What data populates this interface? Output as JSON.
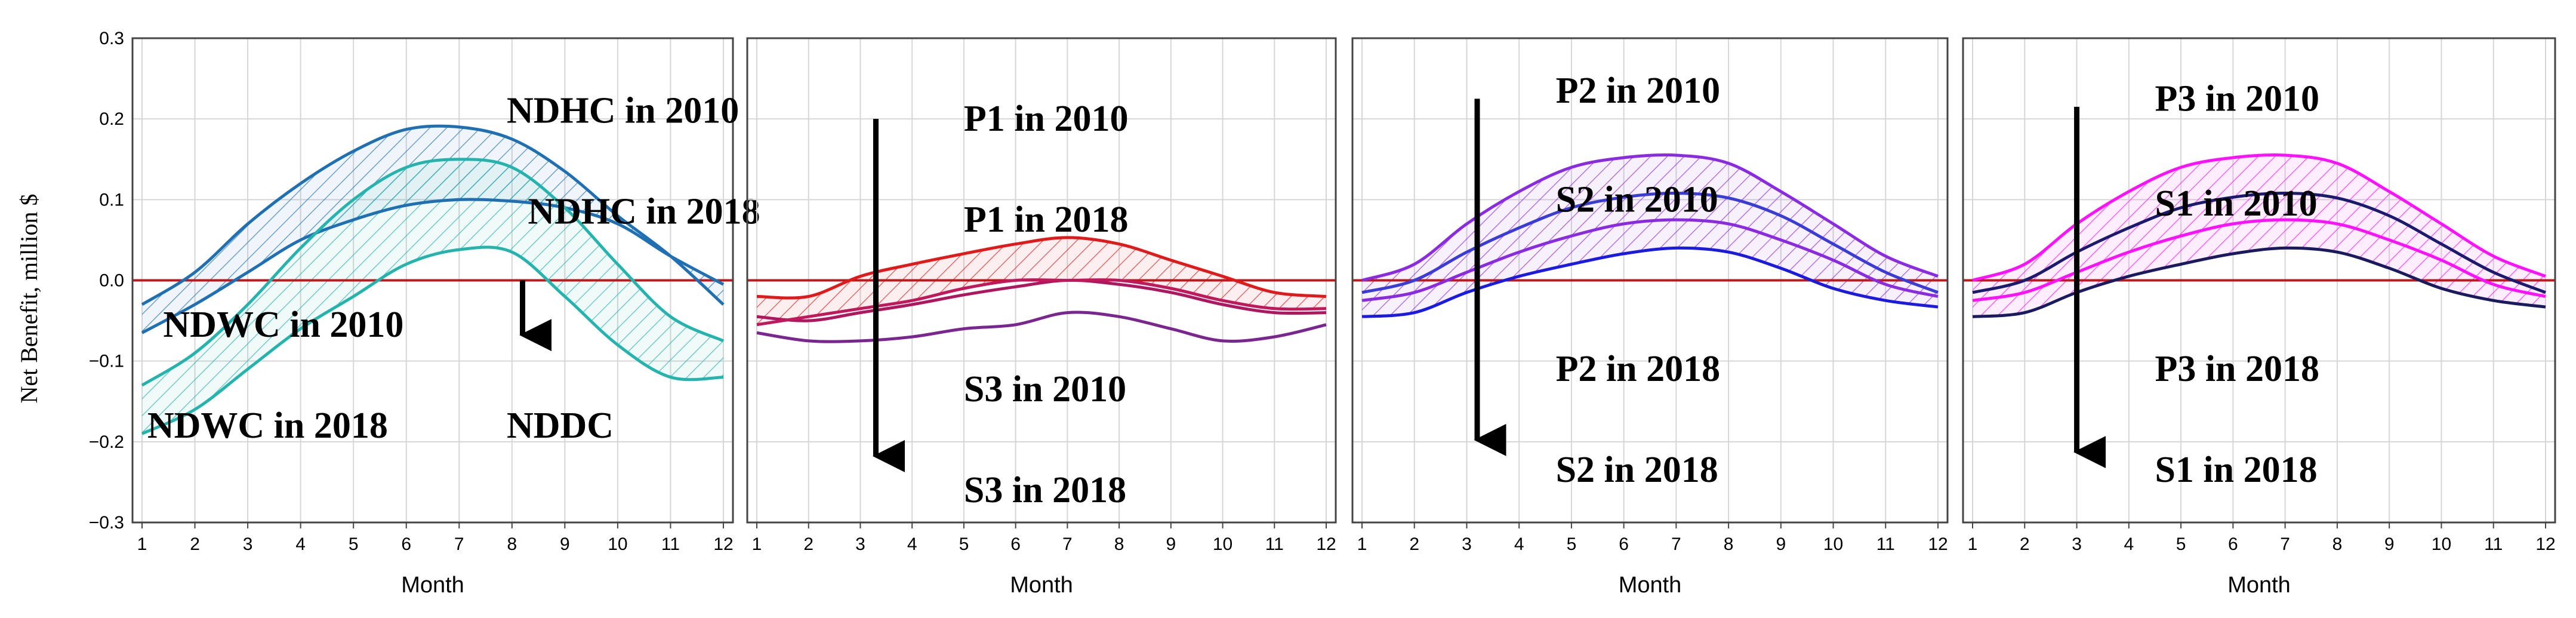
{
  "figure": {
    "ylabel": "Net Benefit, million $",
    "xlabel": "Month"
  },
  "chart_data": [
    {
      "type": "line",
      "panel": "NDHC / NDWC",
      "title": "",
      "xlabel": "Month",
      "ylabel": "Net Benefit, million $",
      "x": [
        1,
        2,
        3,
        4,
        5,
        6,
        7,
        8,
        9,
        10,
        11,
        12
      ],
      "xlim": [
        1,
        12
      ],
      "ylim": [
        -0.3,
        0.3
      ],
      "yticks": [
        -0.3,
        -0.2,
        -0.1,
        0.0,
        0.1,
        0.2,
        0.3
      ],
      "ytick_labels": [
        "−0.3",
        "−0.2",
        "−0.1",
        "0.0",
        "0.1",
        "0.2",
        "0.3"
      ],
      "grid": true,
      "zero_line": true,
      "series": [
        {
          "name": "NDHC in 2010",
          "color": "#1f6fb3",
          "values": [
            -0.03,
            0.01,
            0.07,
            0.12,
            0.16,
            0.187,
            0.19,
            0.175,
            0.135,
            0.08,
            0.03,
            -0.03
          ]
        },
        {
          "name": "NDHC in 2018",
          "color": "#1f6fb3",
          "values": [
            -0.065,
            -0.03,
            0.01,
            0.05,
            0.075,
            0.093,
            0.1,
            0.098,
            0.09,
            0.07,
            0.03,
            -0.005
          ]
        },
        {
          "name": "NDWC in 2010",
          "color": "#25b3ad",
          "values": [
            -0.13,
            -0.09,
            -0.03,
            0.04,
            0.1,
            0.14,
            0.15,
            0.14,
            0.09,
            0.02,
            -0.045,
            -0.075
          ]
        },
        {
          "name": "NDWC in 2018",
          "color": "#25b3ad",
          "values": [
            -0.19,
            -0.16,
            -0.11,
            -0.06,
            -0.02,
            0.02,
            0.038,
            0.035,
            -0.02,
            -0.08,
            -0.12,
            -0.12
          ]
        }
      ],
      "bands": [
        {
          "upper": "NDHC in 2010",
          "lower": "NDHC in 2018",
          "color": "#1f6fb3"
        },
        {
          "upper": "NDWC in 2010",
          "lower": "NDWC in 2018",
          "color": "#25b3ad"
        }
      ],
      "arrow": {
        "x": 8.2,
        "from": 0.0,
        "to": -0.09
      },
      "annotations": [
        {
          "text": "NDHC in 2010",
          "x": 7.9,
          "y": 0.21
        },
        {
          "text": "NDHC in 2018",
          "x": 8.3,
          "y": 0.085
        },
        {
          "text": "NDWC in 2010",
          "x": 1.4,
          "y": -0.055
        },
        {
          "text": "NDWC in 2018",
          "x": 1.1,
          "y": -0.18
        },
        {
          "text": "NDDC",
          "x": 7.9,
          "y": -0.18
        }
      ]
    },
    {
      "type": "line",
      "panel": "P1 / S3",
      "title": "",
      "xlabel": "Month",
      "x": [
        1,
        2,
        3,
        4,
        5,
        6,
        7,
        8,
        9,
        10,
        11,
        12
      ],
      "xlim": [
        1,
        12
      ],
      "ylim": [
        -0.3,
        0.3
      ],
      "grid": true,
      "zero_line": true,
      "series": [
        {
          "name": "P1 in 2010",
          "color": "#e0191b",
          "values": [
            -0.02,
            -0.02,
            0.005,
            0.02,
            0.033,
            0.045,
            0.053,
            0.045,
            0.025,
            0.005,
            -0.015,
            -0.02
          ]
        },
        {
          "name": "P1 in 2018",
          "color": "#b01560",
          "values": [
            -0.045,
            -0.05,
            -0.04,
            -0.03,
            -0.018,
            -0.008,
            0.0,
            -0.005,
            -0.015,
            -0.03,
            -0.04,
            -0.04
          ]
        },
        {
          "name": "S3 in 2010",
          "color": "#c0185a",
          "values": [
            -0.055,
            -0.045,
            -0.035,
            -0.025,
            -0.01,
            0.0,
            0.0,
            0.0,
            -0.01,
            -0.025,
            -0.035,
            -0.035
          ]
        },
        {
          "name": "S3 in 2018",
          "color": "#7a2590",
          "values": [
            -0.065,
            -0.075,
            -0.075,
            -0.07,
            -0.06,
            -0.055,
            -0.04,
            -0.045,
            -0.06,
            -0.075,
            -0.07,
            -0.055
          ]
        }
      ],
      "bands": [
        {
          "upper": "P1 in 2010",
          "lower": "S3 in 2010",
          "color": "#e0191b"
        }
      ],
      "arrow": {
        "x": 3.3,
        "from": 0.2,
        "to": -0.24
      },
      "annotations": [
        {
          "text": "P1 in 2010",
          "x": 5.0,
          "y": 0.2
        },
        {
          "text": "P1 in 2018",
          "x": 5.0,
          "y": 0.075
        },
        {
          "text": "S3 in 2010",
          "x": 5.0,
          "y": -0.135
        },
        {
          "text": "S3 in 2018",
          "x": 5.0,
          "y": -0.26
        }
      ]
    },
    {
      "type": "line",
      "panel": "P2 / S2",
      "title": "",
      "xlabel": "Month",
      "x": [
        1,
        2,
        3,
        4,
        5,
        6,
        7,
        8,
        9,
        10,
        11,
        12
      ],
      "xlim": [
        1,
        12
      ],
      "ylim": [
        -0.3,
        0.3
      ],
      "grid": true,
      "zero_line": true,
      "series": [
        {
          "name": "P2 in 2010",
          "color": "#8a2be2",
          "values": [
            0.0,
            0.02,
            0.07,
            0.11,
            0.14,
            0.152,
            0.155,
            0.145,
            0.11,
            0.07,
            0.03,
            0.005
          ]
        },
        {
          "name": "S2 in 2010",
          "color": "#3b3bd6",
          "values": [
            -0.015,
            0.0,
            0.035,
            0.065,
            0.09,
            0.103,
            0.108,
            0.102,
            0.08,
            0.045,
            0.01,
            -0.015
          ]
        },
        {
          "name": "P2 in 2018",
          "color": "#8a2be2",
          "values": [
            -0.025,
            -0.015,
            0.01,
            0.035,
            0.055,
            0.07,
            0.075,
            0.07,
            0.05,
            0.025,
            -0.005,
            -0.02
          ]
        },
        {
          "name": "S2 in 2018",
          "color": "#1a1ae0",
          "values": [
            -0.045,
            -0.04,
            -0.015,
            0.005,
            0.02,
            0.033,
            0.04,
            0.035,
            0.015,
            -0.01,
            -0.025,
            -0.033
          ]
        }
      ],
      "bands": [
        {
          "upper": "P2 in 2010",
          "lower": "S2 in 2018",
          "color": "#8a2be2"
        }
      ],
      "arrow": {
        "x": 3.2,
        "from": 0.225,
        "to": -0.22
      },
      "annotations": [
        {
          "text": "P2 in 2010",
          "x": 4.7,
          "y": 0.235
        },
        {
          "text": "S2 in 2010",
          "x": 4.7,
          "y": 0.1
        },
        {
          "text": "P2 in 2018",
          "x": 4.7,
          "y": -0.11
        },
        {
          "text": "S2 in 2018",
          "x": 4.7,
          "y": -0.235
        }
      ]
    },
    {
      "type": "line",
      "panel": "P3 / S1",
      "title": "",
      "xlabel": "Month",
      "x": [
        1,
        2,
        3,
        4,
        5,
        6,
        7,
        8,
        9,
        10,
        11,
        12
      ],
      "xlim": [
        1,
        12
      ],
      "ylim": [
        -0.3,
        0.3
      ],
      "grid": true,
      "zero_line": true,
      "series": [
        {
          "name": "P3 in 2010",
          "color": "#ff10ff",
          "values": [
            0.0,
            0.02,
            0.07,
            0.11,
            0.14,
            0.152,
            0.155,
            0.145,
            0.11,
            0.07,
            0.03,
            0.005
          ]
        },
        {
          "name": "S1 in 2010",
          "color": "#1a1a6e",
          "values": [
            -0.015,
            0.0,
            0.035,
            0.065,
            0.09,
            0.103,
            0.108,
            0.102,
            0.08,
            0.045,
            0.01,
            -0.015
          ]
        },
        {
          "name": "P3 in 2018",
          "color": "#ff10ff",
          "values": [
            -0.025,
            -0.015,
            0.01,
            0.035,
            0.055,
            0.07,
            0.075,
            0.07,
            0.05,
            0.025,
            -0.005,
            -0.02
          ]
        },
        {
          "name": "S1 in 2018",
          "color": "#1a1a5e",
          "values": [
            -0.045,
            -0.04,
            -0.015,
            0.005,
            0.02,
            0.033,
            0.04,
            0.035,
            0.015,
            -0.01,
            -0.025,
            -0.033
          ]
        }
      ],
      "bands": [
        {
          "upper": "P3 in 2010",
          "lower": "S1 in 2018",
          "color": "#ff10ff"
        }
      ],
      "arrow": {
        "x": 3.0,
        "from": 0.215,
        "to": -0.235
      },
      "annotations": [
        {
          "text": "P3 in 2010",
          "x": 4.5,
          "y": 0.225
        },
        {
          "text": "S1 in 2010",
          "x": 4.5,
          "y": 0.095
        },
        {
          "text": "P3 in 2018",
          "x": 4.5,
          "y": -0.11
        },
        {
          "text": "S1 in 2018",
          "x": 4.5,
          "y": -0.235
        }
      ]
    }
  ]
}
